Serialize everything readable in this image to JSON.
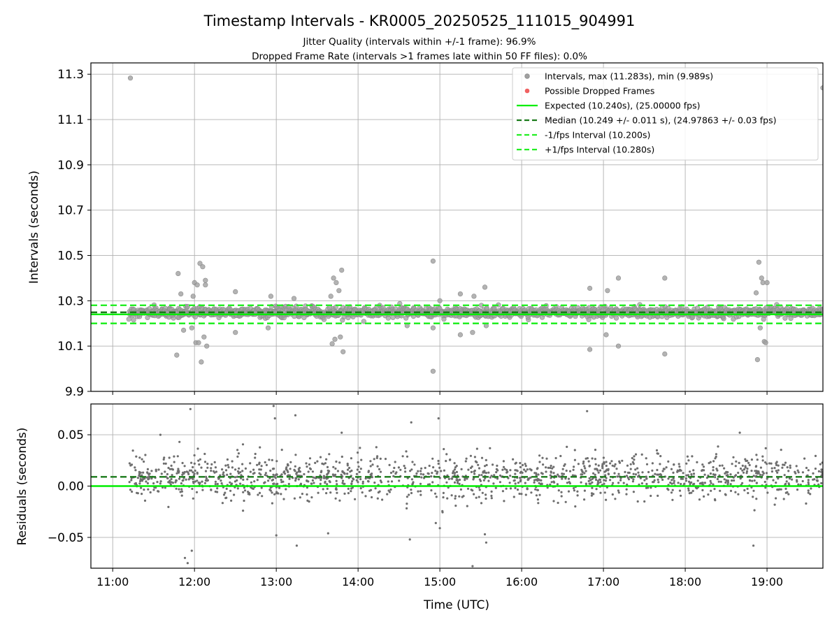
{
  "figure": {
    "title": "Timestamp Intervals - KR0005_20250525_111015_904991",
    "subtitle_1": "Jitter Quality (intervals within +/-1 frame): 96.9%",
    "subtitle_2": "Dropped Frame Rate (intervals >1 frames late within 50 FF files): 0.0%"
  },
  "colors": {
    "points": "#a0a0a0",
    "points_edge": "#8c8c8c",
    "residual_points": "#6e6e6e",
    "dropped": "#f06060",
    "expected": "#00ee00",
    "median": "#1a7a1a",
    "bounds": "#22ee22",
    "grid": "#b0b0b0"
  },
  "chart_data": [
    {
      "type": "scatter",
      "panel": "intervals",
      "ylabel": "Intervals (seconds)",
      "ylim": [
        9.9,
        11.35
      ],
      "yticks": [
        "9.9",
        "10.1",
        "10.3",
        "10.5",
        "10.7",
        "10.9",
        "11.1",
        "11.3"
      ],
      "xlim": [
        "10:44",
        "19:41"
      ],
      "grid": true,
      "legend_position": "top-right",
      "legend": [
        "Intervals, max (11.283s), min (9.989s)",
        "Possible Dropped Frames",
        "Expected (10.240s), (25.00000 fps)",
        "Median (10.249 +/- 0.011 s), (24.97863 +/- 0.03 fps)",
        "-1/fps Interval (10.200s)",
        "+1/fps Interval (10.280s)"
      ],
      "reference_lines": {
        "expected": 10.24,
        "median": 10.249,
        "minus_1fps": 10.2,
        "plus_1fps": 10.28
      },
      "bulk": {
        "x_start": "11:12",
        "x_end": "19:41",
        "center": 10.249,
        "spread": 0.011,
        "count": 1500
      },
      "series": [
        {
          "name": "Intervals, max (11.283s), min (9.989s)",
          "points": [
            [
              "11:13",
              11.283
            ],
            [
              "11:47",
              10.06
            ],
            [
              "11:48",
              10.42
            ],
            [
              "11:50",
              10.33
            ],
            [
              "11:52",
              10.17
            ],
            [
              "11:58",
              10.18
            ],
            [
              "11:59",
              10.32
            ],
            [
              "12:00",
              10.38
            ],
            [
              "12:01",
              10.115
            ],
            [
              "12:02",
              10.37
            ],
            [
              "12:03",
              10.115
            ],
            [
              "12:04",
              10.465
            ],
            [
              "12:05",
              10.03
            ],
            [
              "12:06",
              10.45
            ],
            [
              "12:07",
              10.14
            ],
            [
              "12:08",
              10.39
            ],
            [
              "12:09",
              10.1
            ],
            [
              "12:08",
              10.37
            ],
            [
              "12:30",
              10.16
            ],
            [
              "12:30",
              10.34
            ],
            [
              "12:54",
              10.18
            ],
            [
              "12:56",
              10.32
            ],
            [
              "13:13",
              10.31
            ],
            [
              "13:40",
              10.32
            ],
            [
              "13:41",
              10.11
            ],
            [
              "13:42",
              10.4
            ],
            [
              "13:43",
              10.13
            ],
            [
              "13:44",
              10.38
            ],
            [
              "13:46",
              10.345
            ],
            [
              "13:47",
              10.14
            ],
            [
              "13:48",
              10.435
            ],
            [
              "13:49",
              10.075
            ],
            [
              "14:36",
              10.19
            ],
            [
              "14:55",
              10.18
            ],
            [
              "14:55",
              10.475
            ],
            [
              "14:55",
              9.989
            ],
            [
              "15:00",
              10.3
            ],
            [
              "15:15",
              10.15
            ],
            [
              "15:15",
              10.33
            ],
            [
              "15:24",
              10.16
            ],
            [
              "15:25",
              10.32
            ],
            [
              "15:33",
              10.36
            ],
            [
              "15:34",
              10.19
            ],
            [
              "16:50",
              10.085
            ],
            [
              "16:50",
              10.355
            ],
            [
              "17:02",
              10.15
            ],
            [
              "17:03",
              10.345
            ],
            [
              "17:11",
              10.1
            ],
            [
              "17:11",
              10.4
            ],
            [
              "17:45",
              10.065
            ],
            [
              "17:45",
              10.4
            ],
            [
              "18:52",
              10.335
            ],
            [
              "18:53",
              10.04
            ],
            [
              "18:54",
              10.47
            ],
            [
              "18:55",
              10.18
            ],
            [
              "18:56",
              10.4
            ],
            [
              "18:57",
              10.38
            ],
            [
              "18:58",
              10.12
            ],
            [
              "18:59",
              10.115
            ],
            [
              "19:00",
              10.38
            ],
            [
              "19:41",
              11.24
            ]
          ]
        },
        {
          "name": "Possible Dropped Frames",
          "points": []
        }
      ]
    },
    {
      "type": "scatter",
      "panel": "residuals",
      "ylabel": "Residuals (seconds)",
      "xlabel": "Time (UTC)",
      "ylim": [
        -0.08,
        0.08
      ],
      "yticks": [
        "−0.05",
        "0.00",
        "0.05"
      ],
      "xticks": [
        "11:00",
        "12:00",
        "13:00",
        "14:00",
        "15:00",
        "16:00",
        "17:00",
        "18:00",
        "19:00"
      ],
      "xlim": [
        "10:44",
        "19:41"
      ],
      "grid": true,
      "reference_lines": {
        "zero": 0.0,
        "median_offset": 0.009
      },
      "bulk": {
        "x_start": "11:12",
        "x_end": "19:41",
        "center": 0.009,
        "spread": 0.011,
        "count": 1500
      },
      "outliers": [
        [
          "11:57",
          0.075
        ],
        [
          "11:53",
          -0.07
        ],
        [
          "11:55",
          -0.075
        ],
        [
          "11:58",
          -0.063
        ],
        [
          "12:58",
          0.078
        ],
        [
          "12:59",
          0.066
        ],
        [
          "13:00",
          -0.048
        ],
        [
          "13:14",
          0.069
        ],
        [
          "13:15",
          -0.058
        ],
        [
          "13:38",
          -0.046
        ],
        [
          "13:48",
          0.052
        ],
        [
          "14:39",
          0.062
        ],
        [
          "14:38",
          -0.052
        ],
        [
          "14:59",
          0.066
        ],
        [
          "14:57",
          -0.036
        ],
        [
          "15:00",
          -0.041
        ],
        [
          "15:24",
          -0.078
        ],
        [
          "15:33",
          -0.047
        ],
        [
          "15:34",
          -0.055
        ],
        [
          "16:48",
          0.073
        ],
        [
          "18:40",
          0.052
        ],
        [
          "18:50",
          -0.058
        ],
        [
          "11:35",
          0.05
        ],
        [
          "11:49",
          0.043
        ]
      ]
    }
  ]
}
